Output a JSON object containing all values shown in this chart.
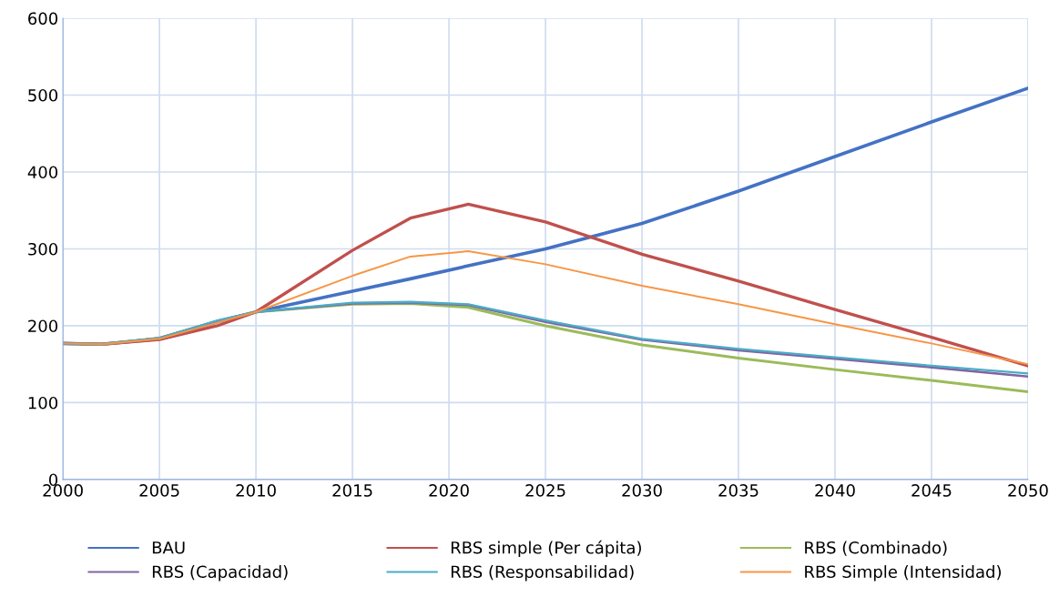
{
  "chart_data": {
    "type": "line",
    "x": [
      2000,
      2002,
      2005,
      2008,
      2010,
      2015,
      2018,
      2021,
      2025,
      2030,
      2035,
      2040,
      2045,
      2050
    ],
    "xlim": [
      2000,
      2050
    ],
    "xticks": [
      2000,
      2005,
      2010,
      2015,
      2020,
      2025,
      2030,
      2035,
      2040,
      2045,
      2050
    ],
    "ylim": [
      0,
      600
    ],
    "yticks": [
      0,
      100,
      200,
      300,
      400,
      500,
      600
    ],
    "grid": true,
    "legend": "bottom",
    "marker": "none",
    "line_style": "solid",
    "series": [
      {
        "name": "BAU",
        "color": "#4472c4",
        "values": [
          177,
          176,
          183,
          205,
          218,
          245,
          261,
          278,
          300,
          333,
          375,
          420,
          465,
          509
        ]
      },
      {
        "name": "RBS simple (Per cápita)",
        "color": "#c0504d",
        "values": [
          177,
          176,
          182,
          200,
          218,
          298,
          340,
          358,
          335,
          293,
          258,
          221,
          185,
          148
        ]
      },
      {
        "name": "RBS (Combinado)",
        "color": "#9bbb59",
        "values": [
          177,
          176,
          184,
          206,
          218,
          228,
          229,
          224,
          200,
          175,
          158,
          143,
          129,
          114
        ]
      },
      {
        "name": "RBS (Capacidad)",
        "color": "#8064a2",
        "values": [
          177,
          176,
          184,
          206,
          218,
          229,
          230,
          227,
          205,
          182,
          168,
          157,
          146,
          134
        ]
      },
      {
        "name": "RBS (Responsabilidad)",
        "color": "#4bacc6",
        "values": [
          177,
          176,
          184,
          207,
          218,
          230,
          231,
          228,
          207,
          183,
          170,
          159,
          148,
          138
        ]
      },
      {
        "name": "RBS Simple (Intensidad)",
        "color": "#f79646",
        "values": [
          177,
          176,
          183,
          204,
          218,
          265,
          290,
          297,
          280,
          252,
          228,
          202,
          177,
          150
        ]
      }
    ]
  }
}
